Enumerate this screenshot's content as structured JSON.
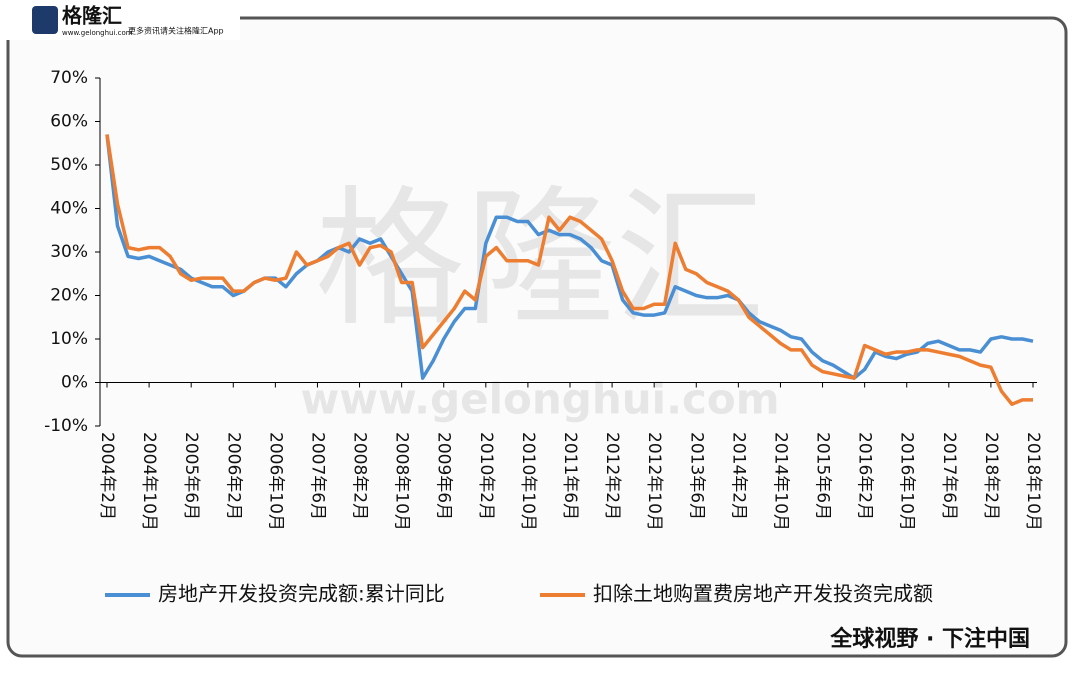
{
  "header": {
    "logo": "格隆汇",
    "site": "www.gelonghui.com",
    "slogan": "更多资讯请关注格隆汇App"
  },
  "watermark": {
    "name": "格隆汇",
    "url": "www.gelonghui.com"
  },
  "footer": "全球视野 · 下注中国",
  "chart_data": {
    "type": "line",
    "categories": [
      "2004年2月",
      null,
      null,
      null,
      "2004年10月",
      null,
      null,
      null,
      "2005年6月",
      null,
      null,
      null,
      "2006年2月",
      null,
      null,
      null,
      "2006年10月",
      null,
      null,
      null,
      "2007年6月",
      null,
      null,
      null,
      "2008年2月",
      null,
      null,
      null,
      "2008年10月",
      null,
      null,
      null,
      "2009年6月",
      null,
      null,
      null,
      "2010年2月",
      null,
      null,
      null,
      "2010年10月",
      null,
      null,
      null,
      "2011年6月",
      null,
      null,
      null,
      "2012年2月",
      null,
      null,
      null,
      "2012年10月",
      null,
      null,
      null,
      "2013年6月",
      null,
      null,
      null,
      "2014年2月",
      null,
      null,
      null,
      "2014年10月",
      null,
      null,
      null,
      "2015年6月",
      null,
      null,
      null,
      "2016年2月",
      null,
      null,
      null,
      "2016年10月",
      null,
      null,
      null,
      "2017年6月",
      null,
      null,
      null,
      "2018年2月",
      null,
      null,
      null,
      "2018年10月"
    ],
    "series": [
      {
        "name": "房地产开发投资完成额:累计同比",
        "color": "#4a8fd4",
        "values": [
          57,
          36,
          29,
          28.5,
          29,
          28,
          27,
          26,
          24,
          23,
          22,
          22,
          20,
          21,
          23,
          24,
          24,
          22,
          25,
          27,
          28,
          30,
          31,
          30,
          33,
          32,
          33,
          29,
          25,
          21,
          1,
          5,
          10,
          14,
          17,
          17,
          32,
          38,
          38,
          37,
          37,
          34,
          35,
          34,
          34,
          33,
          31,
          28,
          27,
          19,
          16,
          15.5,
          15.5,
          16,
          22,
          21,
          20,
          19.5,
          19.5,
          20,
          19,
          16,
          14,
          13,
          12,
          10.5,
          10,
          7,
          5,
          4,
          2.5,
          1,
          3,
          7,
          6,
          5.5,
          6.5,
          7,
          9,
          9.5,
          8.5,
          7.5,
          7.5,
          7,
          10,
          10.5,
          10,
          10,
          9.5
        ]
      },
      {
        "name": "扣除土地购置费房地产开发投资完成额",
        "color": "#ed7d31",
        "values": [
          57,
          41,
          31,
          30.5,
          31,
          31,
          29,
          25,
          23.5,
          24,
          24,
          24,
          21,
          21,
          23,
          24,
          23.5,
          24,
          30,
          27,
          28,
          29,
          31,
          32,
          27,
          31,
          31.5,
          30,
          23,
          23,
          8,
          11,
          14,
          17,
          21,
          19,
          29,
          31,
          28,
          28,
          28,
          27,
          38,
          35,
          38,
          37,
          35,
          33,
          28,
          21,
          17,
          17,
          18,
          18,
          32,
          26,
          25,
          23,
          22,
          21,
          19,
          15,
          13,
          11,
          9,
          7.5,
          7.5,
          4,
          2.5,
          2,
          1.5,
          1,
          8.5,
          7.5,
          6.5,
          7,
          7,
          7.5,
          7.5,
          7,
          6.5,
          6,
          5,
          4,
          3.5,
          -2,
          -5,
          -4,
          -4
        ]
      }
    ],
    "ylim": [
      -10,
      70
    ],
    "yticks": [
      {
        "value": -10,
        "label": "-10%"
      },
      {
        "value": 0,
        "label": "0%"
      },
      {
        "value": 10,
        "label": "10%"
      },
      {
        "value": 20,
        "label": "20%"
      },
      {
        "value": 30,
        "label": "30%"
      },
      {
        "value": 40,
        "label": "40%"
      },
      {
        "value": 50,
        "label": "50%"
      },
      {
        "value": 60,
        "label": "60%"
      },
      {
        "value": 70,
        "label": "70%"
      }
    ],
    "grid": false,
    "legend": "bottom"
  }
}
